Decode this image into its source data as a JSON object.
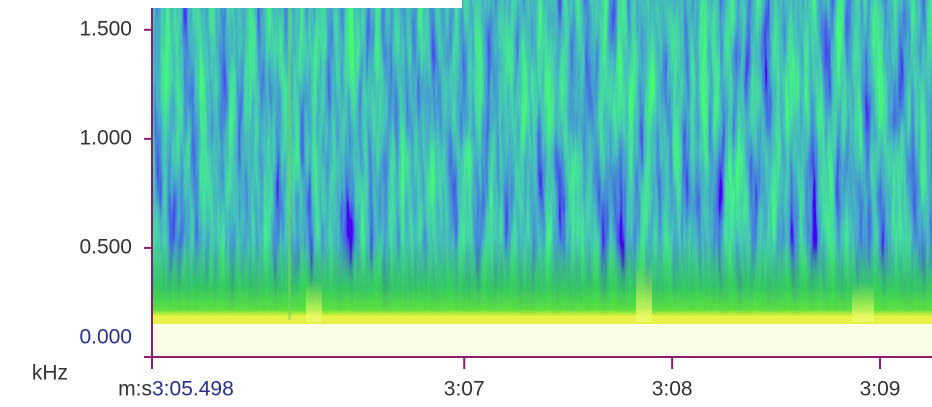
{
  "chart_data": {
    "type": "spectrogram",
    "x_label": "m:s",
    "y_label": "kHz",
    "xlim": [
      185.498,
      189.25
    ],
    "xticks": [
      {
        "value": 185.498,
        "label": "3:05.498"
      },
      {
        "value": 187,
        "label": "3:07"
      },
      {
        "value": 188,
        "label": "3:08"
      },
      {
        "value": 189,
        "label": "3:09"
      }
    ],
    "ylim": [
      0,
      1.6
    ],
    "yticks": [
      {
        "value": 0,
        "label": "0.000"
      },
      {
        "value": 0.5,
        "label": "0.500"
      },
      {
        "value": 1,
        "label": "1.000"
      },
      {
        "value": 1.5,
        "label": "1.500"
      }
    ]
  }
}
